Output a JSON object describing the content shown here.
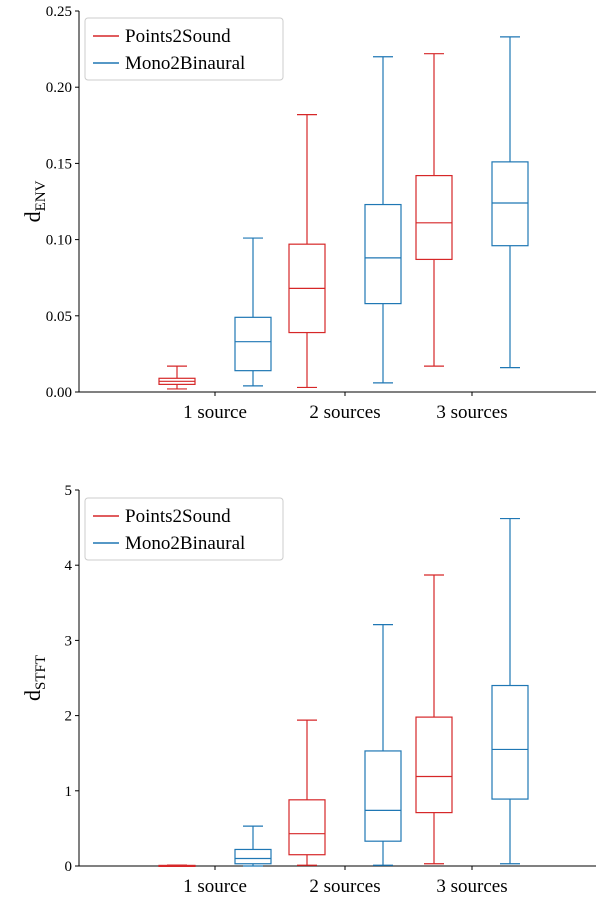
{
  "colors": {
    "series0": "#d62728",
    "series1": "#1f77b4",
    "axis": "#000000",
    "background": "#ffffff"
  },
  "chart_data": [
    {
      "type": "box",
      "ylabel_main": "d",
      "ylabel_sub": "ENV",
      "categories": [
        "1 source",
        "2 sources",
        "3 sources"
      ],
      "ylim": [
        0,
        0.25
      ],
      "yticks": [
        "0.00",
        "0.05",
        "0.10",
        "0.15",
        "0.20",
        "0.25"
      ],
      "ytick_values": [
        0,
        0.05,
        0.1,
        0.15,
        0.2,
        0.25
      ],
      "legend_position": "top-left",
      "grid": false,
      "series": [
        {
          "name": "Points2Sound",
          "color": "#d62728",
          "boxes": [
            {
              "whislo": 0.002,
              "q1": 0.005,
              "med": 0.007,
              "q3": 0.009,
              "whishi": 0.017
            },
            {
              "whislo": 0.003,
              "q1": 0.039,
              "med": 0.068,
              "q3": 0.097,
              "whishi": 0.182
            },
            {
              "whislo": 0.017,
              "q1": 0.087,
              "med": 0.111,
              "q3": 0.142,
              "whishi": 0.222
            }
          ]
        },
        {
          "name": "Mono2Binaural",
          "color": "#1f77b4",
          "boxes": [
            {
              "whislo": 0.004,
              "q1": 0.014,
              "med": 0.033,
              "q3": 0.049,
              "whishi": 0.101
            },
            {
              "whislo": 0.006,
              "q1": 0.058,
              "med": 0.088,
              "q3": 0.123,
              "whishi": 0.22
            },
            {
              "whislo": 0.016,
              "q1": 0.096,
              "med": 0.124,
              "q3": 0.151,
              "whishi": 0.233
            }
          ]
        }
      ]
    },
    {
      "type": "box",
      "ylabel_main": "d",
      "ylabel_sub": "STFT",
      "categories": [
        "1 source",
        "2 sources",
        "3 sources"
      ],
      "ylim": [
        0,
        5
      ],
      "yticks": [
        "0",
        "1",
        "2",
        "3",
        "4",
        "5"
      ],
      "ytick_values": [
        0,
        1,
        2,
        3,
        4,
        5
      ],
      "legend_position": "top-left",
      "grid": false,
      "series": [
        {
          "name": "Points2Sound",
          "color": "#d62728",
          "boxes": [
            {
              "whislo": 0.0,
              "q1": 0.002,
              "med": 0.005,
              "q3": 0.008,
              "whishi": 0.012
            },
            {
              "whislo": 0.01,
              "q1": 0.15,
              "med": 0.43,
              "q3": 0.88,
              "whishi": 1.94
            },
            {
              "whislo": 0.03,
              "q1": 0.71,
              "med": 1.19,
              "q3": 1.98,
              "whishi": 3.87
            }
          ]
        },
        {
          "name": "Mono2Binaural",
          "color": "#1f77b4",
          "boxes": [
            {
              "whislo": 0.0,
              "q1": 0.03,
              "med": 0.1,
              "q3": 0.22,
              "whishi": 0.53
            },
            {
              "whislo": 0.01,
              "q1": 0.33,
              "med": 0.74,
              "q3": 1.53,
              "whishi": 3.21
            },
            {
              "whislo": 0.03,
              "q1": 0.89,
              "med": 1.55,
              "q3": 2.4,
              "whishi": 4.62
            }
          ]
        }
      ]
    }
  ]
}
